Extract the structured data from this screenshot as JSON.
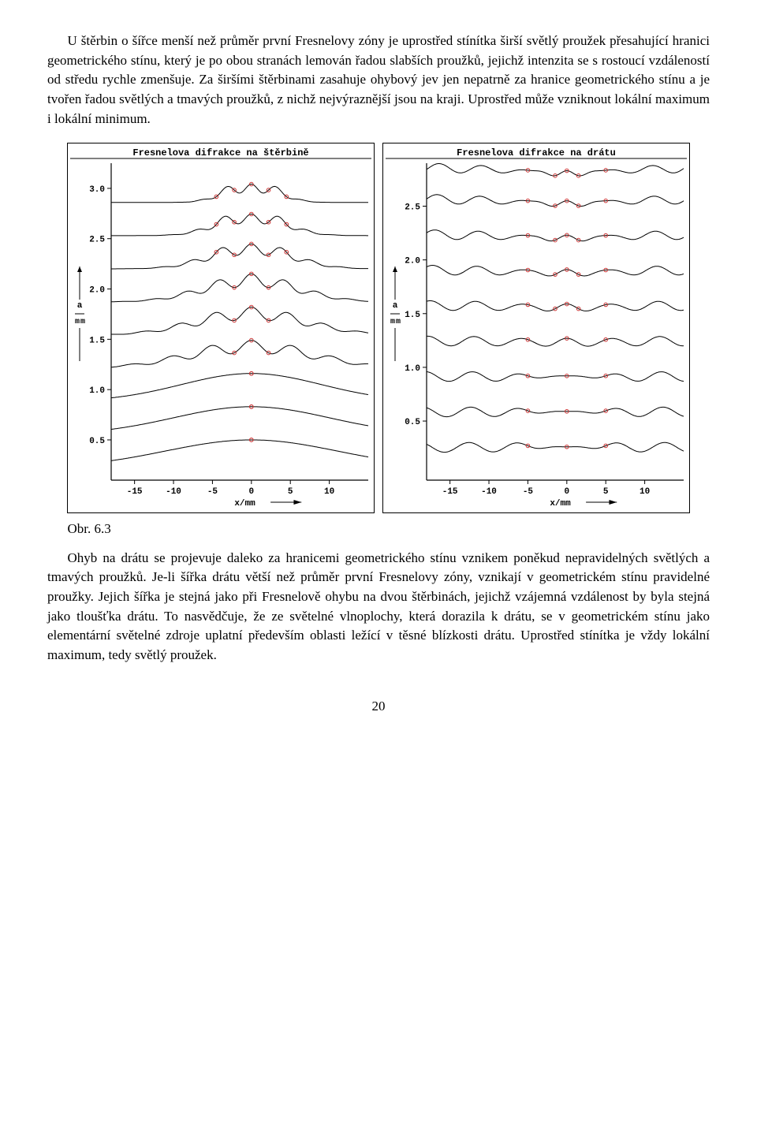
{
  "paragraph1": "U štěrbin o šířce menší než průměr první Fresnelovy zóny je uprostřed stínítka širší světlý proužek přesahující hranici geometrického stínu, který je po obou stranách lemován řadou slabších proužků, jejichž intenzita se s rostoucí vzdáleností od středu rychle zmenšuje. Za širšími štěrbinami zasahuje ohybový jev jen nepatrně za hranice geometrického stínu a je tvořen řadou světlých a tmavých proužků, z nichž nejvýraznější jsou na kraji. Uprostřed může vzniknout lokální maximum i lokální minimum.",
  "paragraph2": "Ohyb na drátu se projevuje daleko za hranicemi geometrického stínu vznikem poněkud nepravidelných světlých a tmavých proužků. Je-li šířka drátu větší než průměr první Fresnelovy zóny, vznikají v geometrickém stínu pravidelné proužky. Jejich šířka je stejná jako při Fresnelově ohybu na dvou štěrbinách, jejichž vzájemná vzdálenost by byla stejná jako tloušťka drátu. To nasvědčuje, že ze světelné vlnoplochy, která dorazila k drátu, se v geometrickém stínu jako elementární světelné zdroje uplatní především oblasti ležící v těsné blízkosti drátu. Uprostřed stínítka je vždy lokální maximum, tedy světlý proužek.",
  "figure_caption": "Obr. 6.3",
  "page_number": "20",
  "chart_left": {
    "title": "Fresnelova difrakce na štěrbině",
    "type": "line-stack",
    "x_label": "x/mm",
    "y_label_top": "a",
    "y_label_mid": "m m",
    "xlim": [
      -18,
      15
    ],
    "ylim": [
      0.1,
      3.25
    ],
    "xticks": [
      -15,
      -10,
      -5,
      0,
      5,
      10
    ],
    "yticks": [
      0.5,
      1.0,
      1.5,
      2.0,
      2.5,
      3.0
    ],
    "title_fontsize": 12,
    "tick_fontsize": 11,
    "line_color": "#000000",
    "marker_color": "#cc3333",
    "border_color": "#000000",
    "background_color": "#ffffff",
    "line_width": 1,
    "marker_radius": 2.3,
    "offsets": [
      0.22,
      0.55,
      0.88,
      1.21,
      1.54,
      1.87,
      2.2,
      2.53,
      2.86
    ],
    "markers_a": [
      2.86,
      2.53,
      2.2,
      1.87,
      1.54,
      1.21,
      0.88,
      0.55,
      0.22
    ],
    "trace_type": "slit"
  },
  "chart_right": {
    "title": "Fresnelova difrakce na drátu",
    "type": "line-stack",
    "x_label": "x/mm",
    "y_label_top": "a",
    "y_label_mid": "m m",
    "xlim": [
      -18,
      15
    ],
    "ylim": [
      -0.05,
      2.9
    ],
    "xticks": [
      -15,
      -10,
      -5,
      0,
      5,
      10
    ],
    "yticks": [
      0.5,
      1.0,
      1.5,
      2.0,
      2.5
    ],
    "title_fontsize": 12,
    "tick_fontsize": 11,
    "line_color": "#000000",
    "marker_color": "#cc3333",
    "border_color": "#000000",
    "background_color": "#ffffff",
    "line_width": 1,
    "marker_radius": 2.3,
    "offsets": [
      0.1,
      0.43,
      0.76,
      1.09,
      1.42,
      1.75,
      2.08,
      2.41,
      2.7
    ],
    "markers_a": [
      2.7,
      2.41,
      2.08,
      1.75,
      1.42,
      1.09,
      0.76,
      0.43,
      0.1
    ],
    "trace_type": "wire"
  }
}
